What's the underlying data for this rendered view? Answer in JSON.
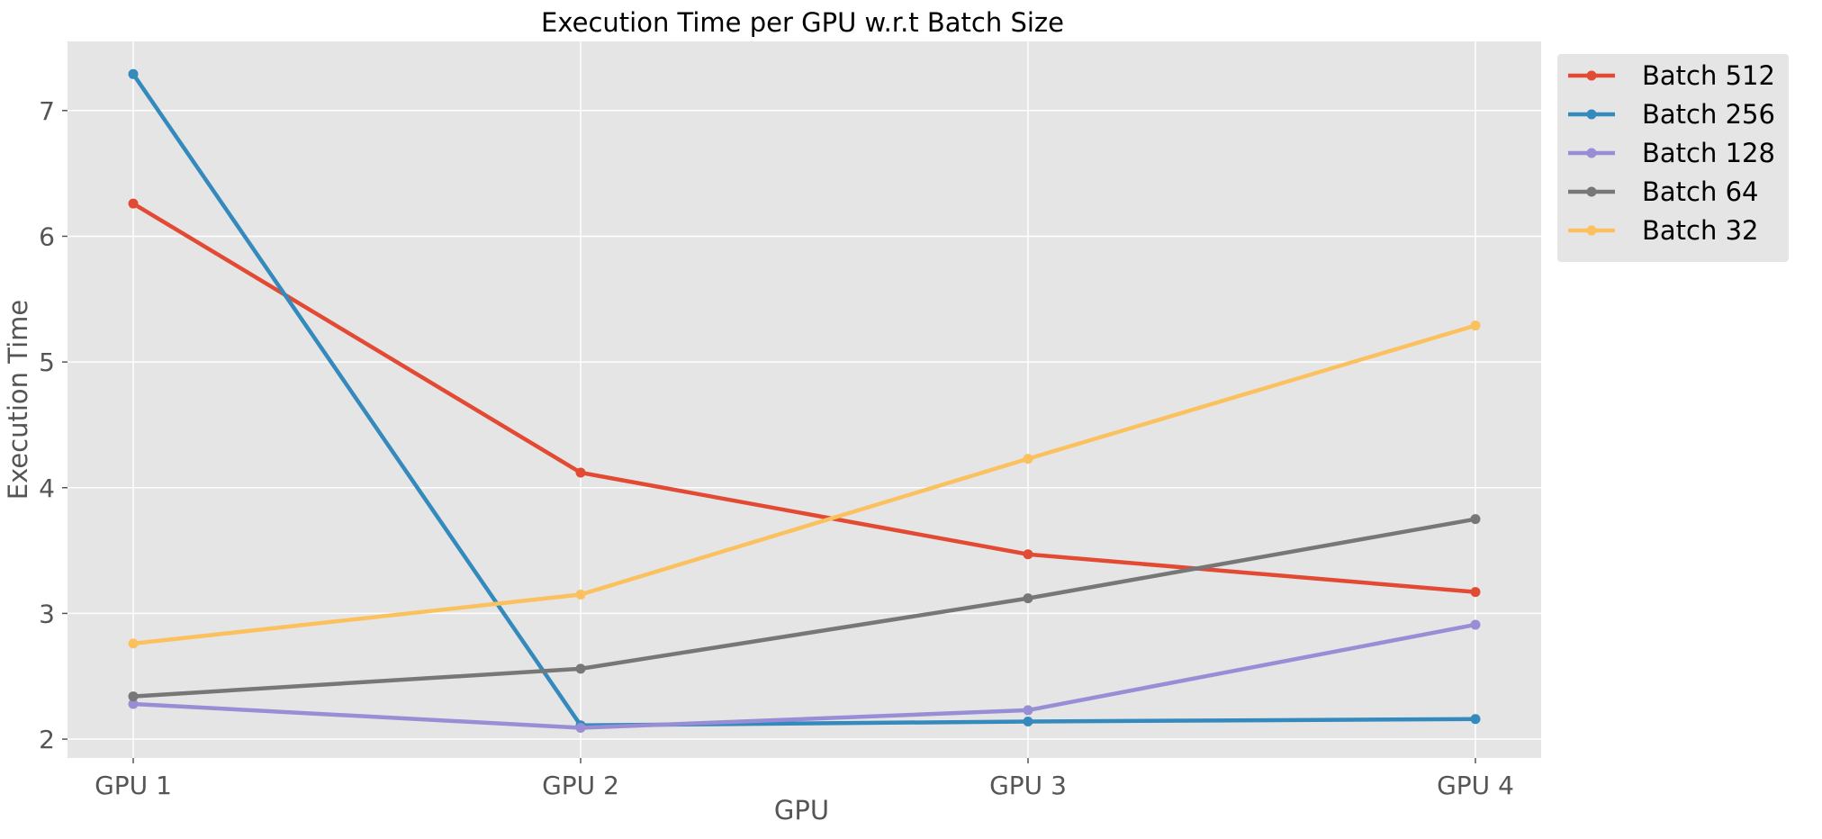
{
  "chart_data": {
    "type": "line",
    "title": "Execution Time per GPU w.r.t Batch Size",
    "xlabel": "GPU",
    "ylabel": "Execution Time",
    "categories": [
      "GPU 1",
      "GPU 2",
      "GPU 3",
      "GPU 4"
    ],
    "ylim": [
      1.85,
      7.55
    ],
    "yticks": [
      2,
      3,
      4,
      5,
      6,
      7
    ],
    "grid": true,
    "legend_position": "outside-top-right",
    "series": [
      {
        "name": "Batch 512",
        "color": "#E24A33",
        "values": [
          6.26,
          4.12,
          3.47,
          3.17
        ]
      },
      {
        "name": "Batch 256",
        "color": "#348ABD",
        "values": [
          7.29,
          2.11,
          2.14,
          2.16
        ]
      },
      {
        "name": "Batch 128",
        "color": "#988ED5",
        "values": [
          2.28,
          2.09,
          2.23,
          2.91
        ]
      },
      {
        "name": "Batch 64",
        "color": "#777777",
        "values": [
          2.34,
          2.56,
          3.12,
          3.75
        ]
      },
      {
        "name": "Batch 32",
        "color": "#FBC15E",
        "values": [
          2.76,
          3.15,
          4.23,
          5.29
        ]
      }
    ]
  }
}
